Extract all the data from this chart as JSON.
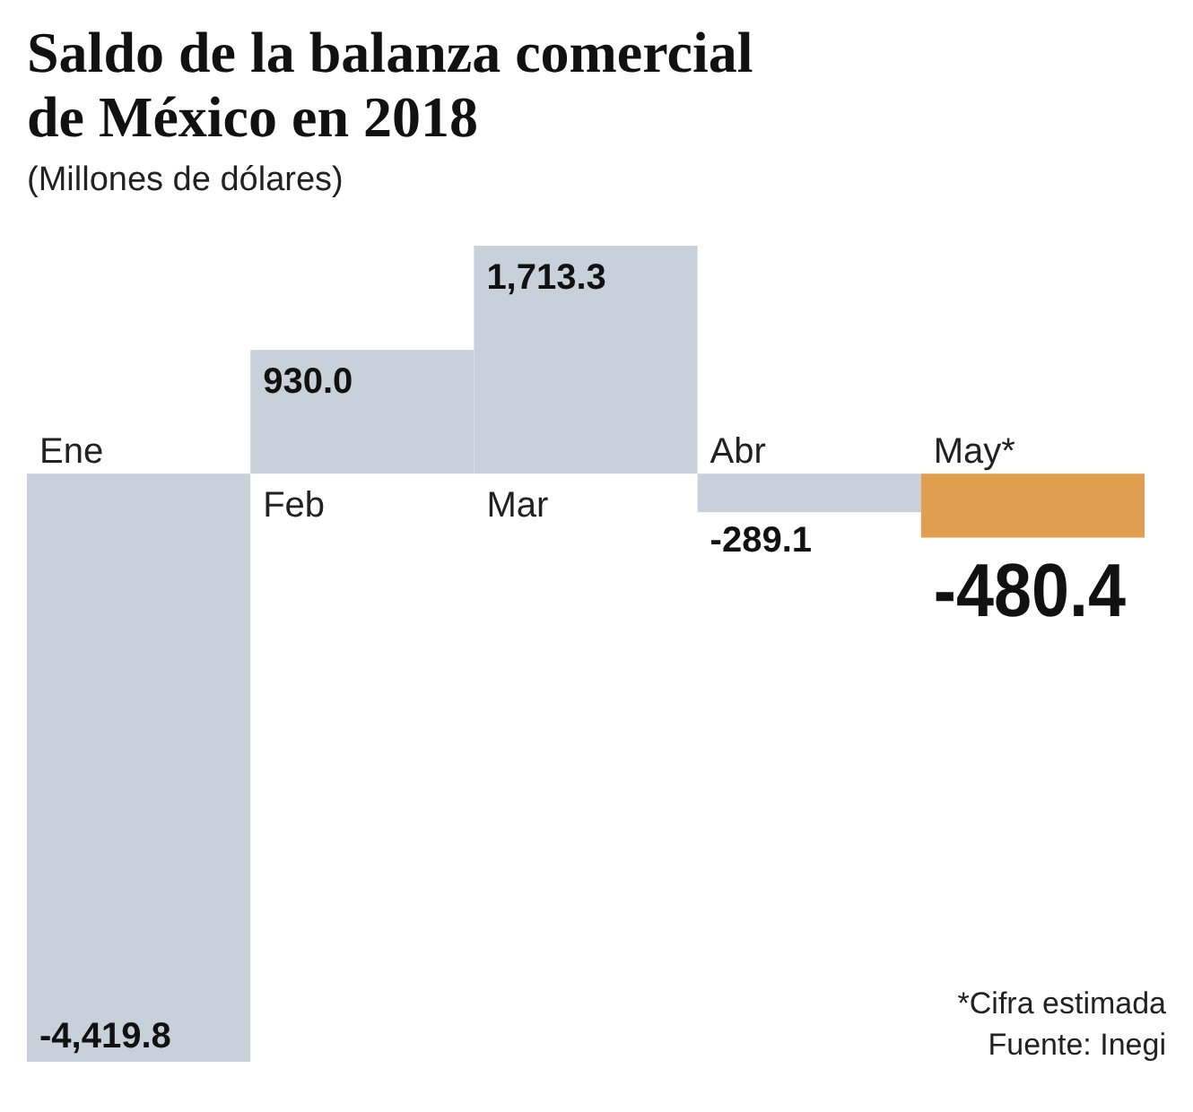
{
  "chart_data": {
    "type": "bar",
    "title": "Saldo de la balanza comercial de México en 2018",
    "subtitle": "(Millones de dólares)",
    "categories": [
      "Ene",
      "Feb",
      "Mar",
      "Abr",
      "May*"
    ],
    "values": [
      -4419.8,
      930.0,
      1713.3,
      -289.1,
      -480.4
    ],
    "colors": [
      "#c8d0da",
      "#c8d0da",
      "#c8d0da",
      "#c8d0da",
      "#e09f4e"
    ],
    "value_labels": [
      "-4,419.8",
      "930.0",
      "1,713.3",
      "-289.1",
      "-480.4"
    ],
    "annotations": [
      "*Cifra estimada",
      "Fuente: Inegi"
    ]
  }
}
